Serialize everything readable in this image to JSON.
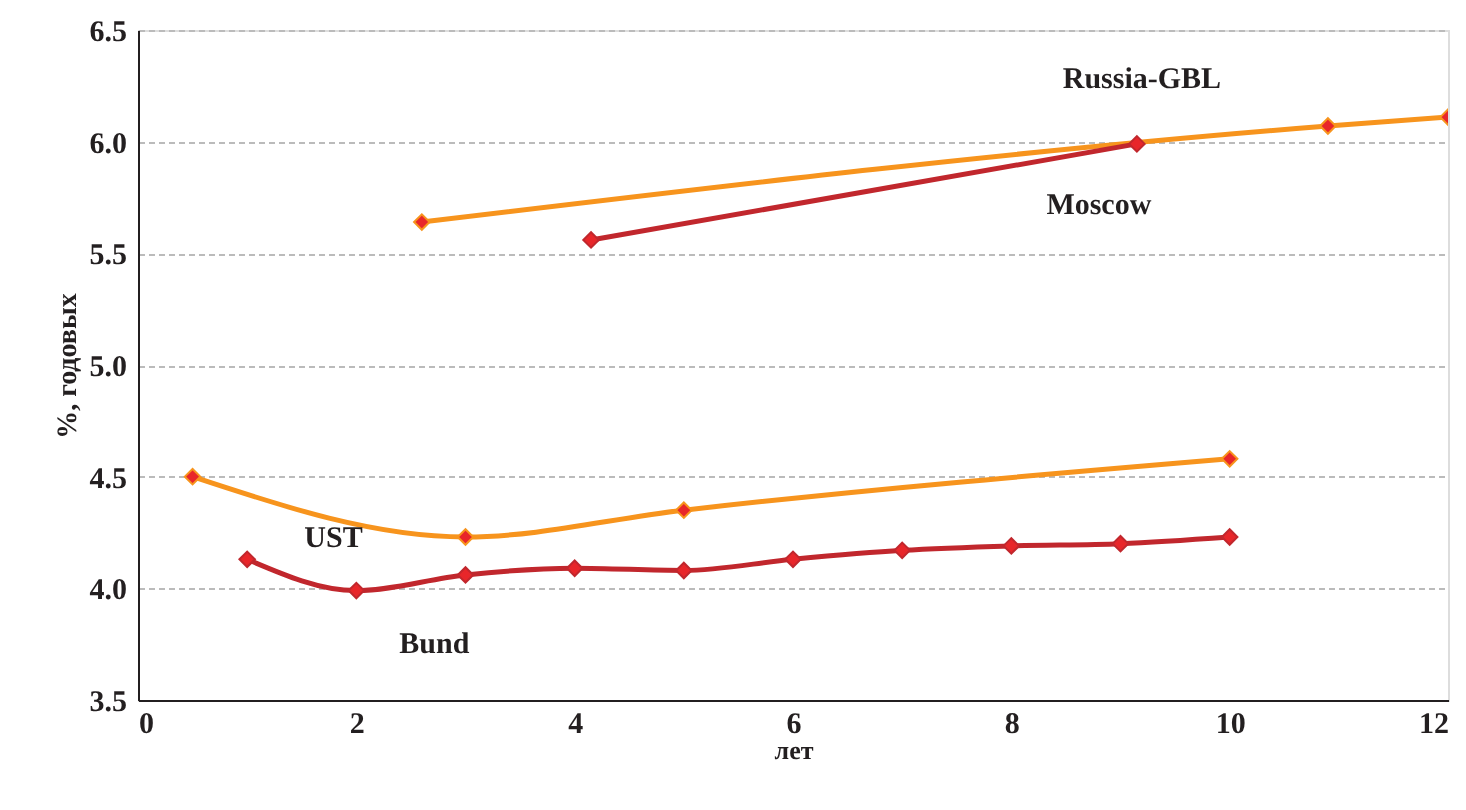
{
  "chart_data": {
    "type": "line",
    "xlabel": "лет",
    "ylabel": "%, годовых",
    "xlim": [
      0,
      12
    ],
    "xticks": [
      0,
      2,
      4,
      6,
      8,
      10,
      12
    ],
    "ylim": [
      3.5,
      6.5
    ],
    "yticks": [
      3.5,
      {
        "value": 4,
        "label": "4.0"
      },
      4.5,
      {
        "value": 5,
        "label": "5.0"
      },
      5.5,
      {
        "value": 6,
        "label": "6.0"
      },
      6.5
    ],
    "grid": "y",
    "legend": false,
    "marker": "diamond",
    "line_style": "solid",
    "series": [
      {
        "name": "Russia-GBL",
        "color": "#f7941d",
        "x": [
          2.6,
          10.9,
          12
        ],
        "values": [
          5.64,
          6.07,
          6.11
        ]
      },
      {
        "name": "Moscow",
        "color": "#c1272d",
        "x": [
          4.15,
          9.15
        ],
        "values": [
          5.56,
          5.99
        ]
      },
      {
        "name": "UST",
        "color": "#f7941d",
        "x": [
          0.5,
          3,
          5,
          10
        ],
        "values": [
          4.5,
          4.23,
          4.35,
          4.58
        ]
      },
      {
        "name": "Bund",
        "color": "#c1272d",
        "x": [
          1,
          2,
          3,
          4,
          5,
          6,
          7,
          8,
          9,
          10
        ],
        "values": [
          4.13,
          3.99,
          4.06,
          4.09,
          4.08,
          4.13,
          4.17,
          4.19,
          4.2,
          4.23
        ]
      }
    ]
  }
}
